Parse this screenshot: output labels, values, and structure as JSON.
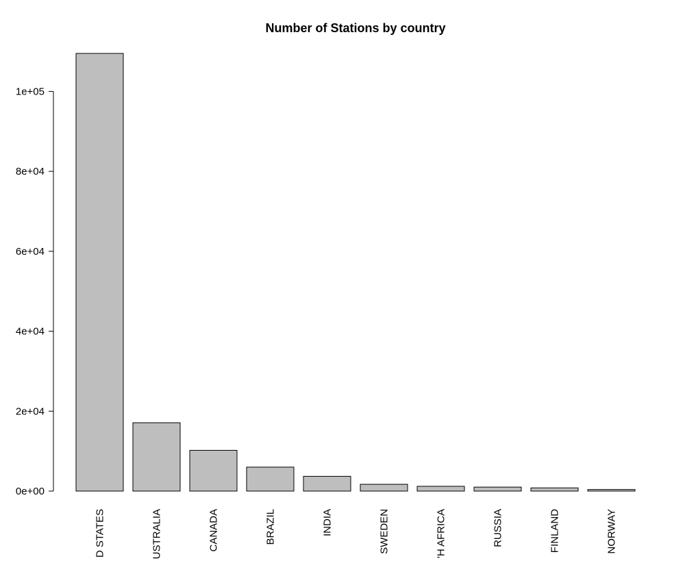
{
  "chart_data": {
    "type": "bar",
    "title": "Number of Stations by country",
    "xlabel": "",
    "ylabel": "",
    "categories": [
      "UNITED STATES",
      "AUSTRALIA",
      "CANADA",
      "BRAZIL",
      "INDIA",
      "SWEDEN",
      "SOUTH AFRICA",
      "RUSSIA",
      "FINLAND",
      "NORWAY"
    ],
    "category_labels_visible": [
      "D STATES",
      "USTRALIA",
      "CANADA",
      "BRAZIL",
      "INDIA",
      "SWEDEN",
      "'H AFRICA",
      "RUSSIA",
      "FINLAND",
      "NORWAY"
    ],
    "values": [
      109500,
      17100,
      10200,
      6000,
      3700,
      1700,
      1200,
      1000,
      800,
      400
    ],
    "ylim": [
      0,
      109500
    ],
    "yticks": [
      0,
      20000,
      40000,
      60000,
      80000,
      100000
    ],
    "ytick_labels": [
      "0e+00",
      "2e+04",
      "4e+04",
      "6e+04",
      "8e+04",
      "1e+05"
    ],
    "grid": false,
    "legend": "none",
    "colors": {
      "bar_fill": "#bebebe",
      "bar_stroke": "#000000",
      "text": "#000000"
    }
  }
}
